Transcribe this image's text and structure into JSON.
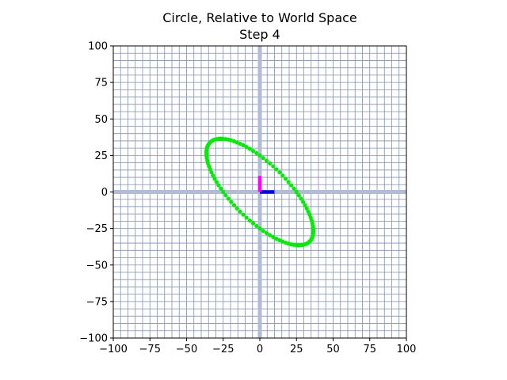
{
  "chart_data": {
    "type": "scatter",
    "title": "Circle, Relative to World Space",
    "subtitle": "Step 4",
    "xlim": [
      -100,
      100
    ],
    "ylim": [
      -100,
      100
    ],
    "x_ticks": [
      -100,
      -75,
      -50,
      -25,
      0,
      25,
      50,
      75,
      100
    ],
    "y_ticks": [
      -100,
      -75,
      -50,
      -25,
      0,
      25,
      50,
      75,
      100
    ],
    "x_tick_labels": [
      "−100",
      "−75",
      "−50",
      "−25",
      "0",
      "25",
      "50",
      "75",
      "100"
    ],
    "y_tick_labels": [
      "−100",
      "−75",
      "−50",
      "−25",
      "0",
      "25",
      "50",
      "75",
      "100"
    ],
    "grid": true,
    "grid_step": 5,
    "grid_color": "#8090b8",
    "axis_line_color": "#b0bcd8",
    "ellipse": {
      "center": [
        0,
        0
      ],
      "semi_major": 48,
      "semi_minor": 19,
      "angle_deg": -45,
      "color": "#00ee00"
    },
    "basis_vectors": [
      {
        "from": [
          0,
          0
        ],
        "to": [
          10,
          0
        ],
        "color": "#0000ff"
      },
      {
        "from": [
          0,
          0
        ],
        "to": [
          0,
          11
        ],
        "color": "#ff00ff"
      }
    ]
  }
}
